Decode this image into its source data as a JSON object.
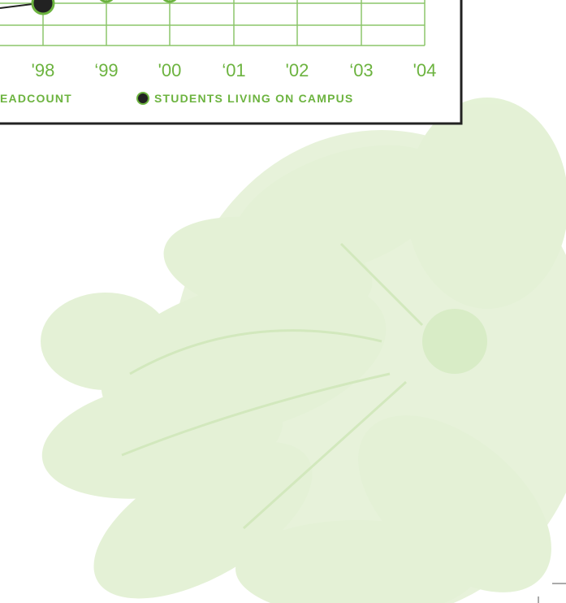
{
  "chart": {
    "x_labels": [
      "'98",
      "‘99",
      "'00",
      "‘01",
      "'02",
      "‘03",
      "'04"
    ],
    "legend": [
      "EADCOUNT",
      "STUDENTS LIVING ON CAMPUS"
    ]
  }
}
